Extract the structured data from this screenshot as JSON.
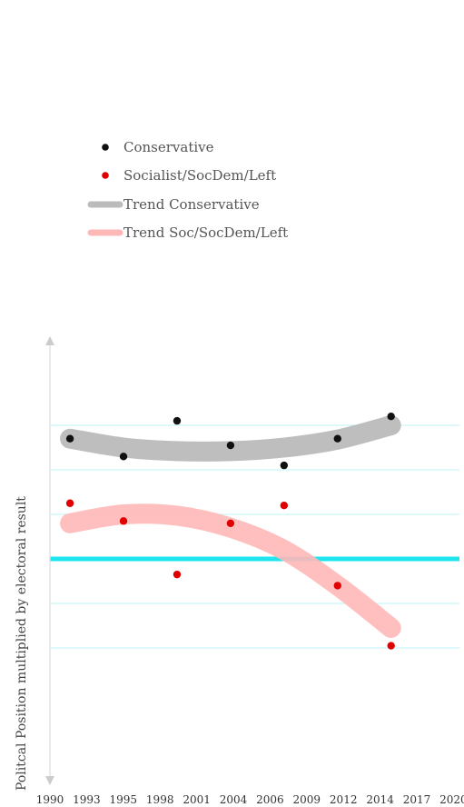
{
  "chart_data": {
    "type": "scatter",
    "title": "",
    "xlabel": "",
    "ylabel": "Politcal Position multiplied by electoral result",
    "x_ticks": [
      "1990",
      "1993",
      "1995",
      "1998",
      "2001",
      "2004",
      "2006",
      "2009",
      "2012",
      "2014",
      "2017",
      "2020"
    ],
    "xlim": [
      1990,
      2020
    ],
    "ylim": [
      -5,
      5
    ],
    "grid": "horizontal",
    "zero_line": 0,
    "legend": {
      "placement": "top-left",
      "entries": [
        "Conservative",
        "Socialist/SocDem/Left",
        "Trend Conservative",
        "Trend Soc/SocDem/Left"
      ]
    },
    "series": [
      {
        "name": "Conservative",
        "kind": "points",
        "color": "#111111",
        "points": [
          {
            "x": 1991.5,
            "y": 2.7
          },
          {
            "x": 1995.5,
            "y": 2.3
          },
          {
            "x": 1999.5,
            "y": 3.1
          },
          {
            "x": 2003.5,
            "y": 2.55
          },
          {
            "x": 2007.5,
            "y": 2.1
          },
          {
            "x": 2011.5,
            "y": 2.7
          },
          {
            "x": 2015.5,
            "y": 3.2
          }
        ]
      },
      {
        "name": "Socialist/SocDem/Left",
        "kind": "points",
        "color": "#e00000",
        "points": [
          {
            "x": 1991.5,
            "y": 1.25
          },
          {
            "x": 1995.5,
            "y": 0.85
          },
          {
            "x": 1999.5,
            "y": -0.35
          },
          {
            "x": 2003.5,
            "y": 0.8
          },
          {
            "x": 2007.5,
            "y": 1.2
          },
          {
            "x": 2011.5,
            "y": -0.6
          },
          {
            "x": 2015.5,
            "y": -1.95
          }
        ]
      },
      {
        "name": "Trend Conservative",
        "kind": "trend",
        "color": "#bbbbbb",
        "points": [
          {
            "x": 1991.5,
            "y": 2.7
          },
          {
            "x": 1995.5,
            "y": 2.5
          },
          {
            "x": 1999.5,
            "y": 2.42
          },
          {
            "x": 2003.5,
            "y": 2.42
          },
          {
            "x": 2007.5,
            "y": 2.5
          },
          {
            "x": 2011.5,
            "y": 2.68
          },
          {
            "x": 2015.5,
            "y": 3.0
          }
        ]
      },
      {
        "name": "Trend Soc/SocDem/Left",
        "kind": "trend",
        "color": "#ffb8b8",
        "points": [
          {
            "x": 1991.5,
            "y": 0.8
          },
          {
            "x": 1995.5,
            "y": 1.0
          },
          {
            "x": 1999.5,
            "y": 0.97
          },
          {
            "x": 2003.5,
            "y": 0.7
          },
          {
            "x": 2007.5,
            "y": 0.2
          },
          {
            "x": 2011.5,
            "y": -0.6
          },
          {
            "x": 2015.5,
            "y": -1.55
          }
        ]
      }
    ]
  }
}
